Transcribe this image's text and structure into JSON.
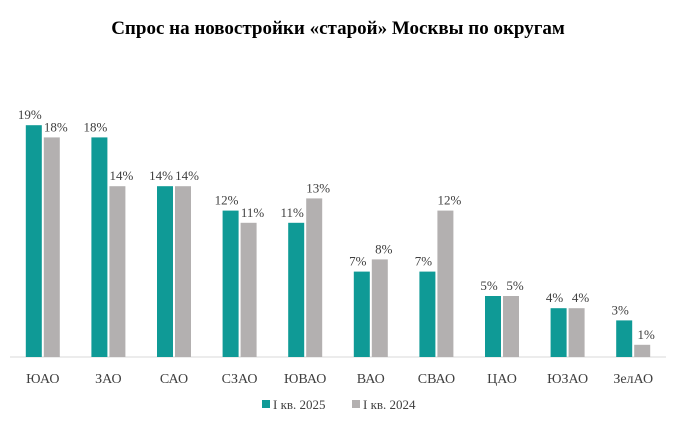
{
  "chart_data": {
    "type": "bar",
    "title": "Спрос на новостройки  «старой» Москвы по округам",
    "xlabel": "",
    "ylabel": "",
    "categories": [
      "ЮАО",
      "ЗАО",
      "САО",
      "СЗАО",
      "ЮВАО",
      "ВАО",
      "СВАО",
      "ЦАО",
      "ЮЗАО",
      "ЗелАО"
    ],
    "series": [
      {
        "name": "I кв. 2025",
        "color": "#0f9a96",
        "values": [
          19,
          18,
          14,
          12,
          11,
          7,
          7,
          5,
          4,
          3
        ],
        "labels": [
          "19%",
          "18%",
          "14%",
          "12%",
          "11%",
          "7%",
          "7%",
          "5%",
          "4%",
          "3%"
        ]
      },
      {
        "name": "I кв. 2024",
        "color": "#b3b0b0",
        "values": [
          18,
          14,
          14,
          11,
          13,
          8,
          12,
          5,
          4,
          1
        ],
        "labels": [
          "18%",
          "14%",
          "14%",
          "11%",
          "13%",
          "8%",
          "12%",
          "5%",
          "4%",
          "1%"
        ]
      }
    ],
    "ylim": [
      0,
      20
    ],
    "grid": false,
    "legend_position": "bottom"
  }
}
